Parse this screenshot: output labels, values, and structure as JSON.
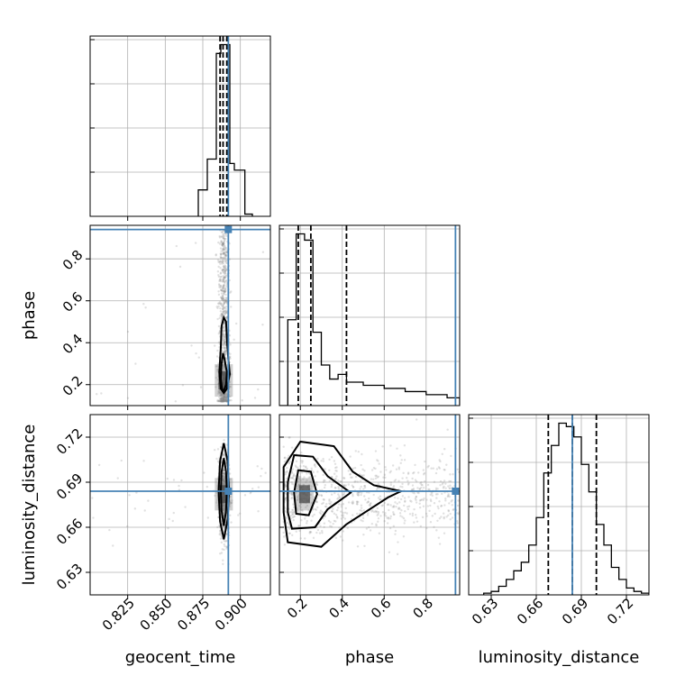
{
  "chart_data": {
    "type": "corner",
    "parameters": [
      "geocent_time",
      "phase",
      "luminosity_distance"
    ],
    "truth": {
      "geocent_time": 0.892,
      "phase": 0.94,
      "luminosity_distance": 0.684
    },
    "colors": {
      "truth": "#4682b4",
      "hist": "#000000",
      "grid": "#b0b0b0",
      "samples": "#888888"
    },
    "grid": true,
    "axes": {
      "geocent_time": {
        "range": [
          0.8,
          0.92
        ],
        "ticks": [
          0.825,
          0.85,
          0.875,
          0.9
        ],
        "tick_labels": [
          "0.825",
          "0.850",
          "0.875",
          "0.900"
        ],
        "label": "geocent_time"
      },
      "phase": {
        "range": [
          0.1,
          0.96
        ],
        "ticks": [
          0.2,
          0.4,
          0.6,
          0.8
        ],
        "tick_labels": [
          "0.2",
          "0.4",
          "0.6",
          "0.8"
        ],
        "label": "phase"
      },
      "luminosity_distance": {
        "range": [
          0.615,
          0.735
        ],
        "ticks": [
          0.63,
          0.66,
          0.69,
          0.72
        ],
        "tick_labels": [
          "0.63",
          "0.66",
          "0.69",
          "0.72"
        ],
        "label": "luminosity_distance"
      }
    },
    "histograms": {
      "geocent_time": {
        "edges": [
          0.872,
          0.878,
          0.884,
          0.887,
          0.89,
          0.893,
          0.896,
          0.903,
          0.908
        ],
        "counts": [
          0.6,
          1.3,
          3.7,
          3.9,
          3.9,
          1.2,
          1.05,
          0.05
        ],
        "quantiles": [
          0.8865,
          0.8885,
          0.891
        ]
      },
      "phase": {
        "edges": [
          0.1,
          0.14,
          0.18,
          0.22,
          0.26,
          0.3,
          0.34,
          0.38,
          0.42,
          0.5,
          0.6,
          0.7,
          0.8,
          0.9,
          0.96
        ],
        "counts": [
          0.0,
          0.55,
          1.1,
          1.06,
          0.47,
          0.26,
          0.17,
          0.2,
          0.15,
          0.13,
          0.11,
          0.09,
          0.07,
          0.05
        ],
        "quantiles": [
          0.19,
          0.25,
          0.42
        ]
      },
      "luminosity_distance": {
        "edges": [
          0.625,
          0.63,
          0.635,
          0.64,
          0.645,
          0.65,
          0.655,
          0.66,
          0.665,
          0.67,
          0.675,
          0.68,
          0.685,
          0.69,
          0.695,
          0.7,
          0.705,
          0.71,
          0.715,
          0.72,
          0.725,
          0.73,
          0.735
        ],
        "counts": [
          0.01,
          0.02,
          0.05,
          0.09,
          0.14,
          0.19,
          0.29,
          0.45,
          0.71,
          0.87,
          1.0,
          0.98,
          0.92,
          0.76,
          0.6,
          0.41,
          0.29,
          0.16,
          0.09,
          0.04,
          0.02,
          0.01
        ],
        "quantiles": [
          0.668,
          0.684,
          0.7
        ]
      }
    },
    "panels_2d": [
      {
        "x": "geocent_time",
        "y": "phase",
        "density_center": [
          0.889,
          0.22
        ],
        "contours": [
          [
            [
              0.889,
              0.16
            ],
            [
              0.891,
              0.18
            ],
            [
              0.893,
              0.25
            ],
            [
              0.892,
              0.32
            ],
            [
              0.891,
              0.42
            ],
            [
              0.8905,
              0.5
            ],
            [
              0.889,
              0.52
            ],
            [
              0.8875,
              0.48
            ],
            [
              0.887,
              0.38
            ],
            [
              0.886,
              0.26
            ],
            [
              0.887,
              0.18
            ]
          ],
          [
            [
              0.889,
              0.17
            ],
            [
              0.8905,
              0.2
            ],
            [
              0.891,
              0.26
            ],
            [
              0.8895,
              0.32
            ],
            [
              0.8885,
              0.35
            ],
            [
              0.8875,
              0.3
            ],
            [
              0.887,
              0.23
            ],
            [
              0.8878,
              0.18
            ]
          ]
        ]
      },
      {
        "x": "geocent_time",
        "y": "luminosity_distance",
        "density_center": [
          0.889,
          0.682
        ],
        "contours": [
          [
            [
              0.889,
              0.652
            ],
            [
              0.8915,
              0.665
            ],
            [
              0.8925,
              0.684
            ],
            [
              0.8915,
              0.704
            ],
            [
              0.889,
              0.716
            ],
            [
              0.8865,
              0.704
            ],
            [
              0.8855,
              0.684
            ],
            [
              0.8865,
              0.664
            ]
          ],
          [
            [
              0.889,
              0.661
            ],
            [
              0.8905,
              0.671
            ],
            [
              0.891,
              0.684
            ],
            [
              0.8905,
              0.697
            ],
            [
              0.889,
              0.706
            ],
            [
              0.8875,
              0.697
            ],
            [
              0.887,
              0.684
            ],
            [
              0.8875,
              0.671
            ]
          ]
        ]
      },
      {
        "x": "phase",
        "y": "luminosity_distance",
        "density_center": [
          0.22,
          0.682
        ],
        "contours": [
          [
            [
              0.14,
              0.65
            ],
            [
              0.3,
              0.647
            ],
            [
              0.42,
              0.662
            ],
            [
              0.62,
              0.68
            ],
            [
              0.68,
              0.684
            ],
            [
              0.55,
              0.688
            ],
            [
              0.45,
              0.697
            ],
            [
              0.36,
              0.714
            ],
            [
              0.2,
              0.717
            ],
            [
              0.12,
              0.7
            ],
            [
              0.12,
              0.67
            ]
          ],
          [
            [
              0.16,
              0.659
            ],
            [
              0.27,
              0.66
            ],
            [
              0.33,
              0.672
            ],
            [
              0.44,
              0.683
            ],
            [
              0.33,
              0.694
            ],
            [
              0.26,
              0.707
            ],
            [
              0.17,
              0.708
            ],
            [
              0.14,
              0.69
            ],
            [
              0.14,
              0.67
            ]
          ],
          [
            [
              0.18,
              0.669
            ],
            [
              0.24,
              0.668
            ],
            [
              0.28,
              0.682
            ],
            [
              0.25,
              0.697
            ],
            [
              0.19,
              0.698
            ],
            [
              0.17,
              0.683
            ]
          ]
        ]
      }
    ]
  }
}
